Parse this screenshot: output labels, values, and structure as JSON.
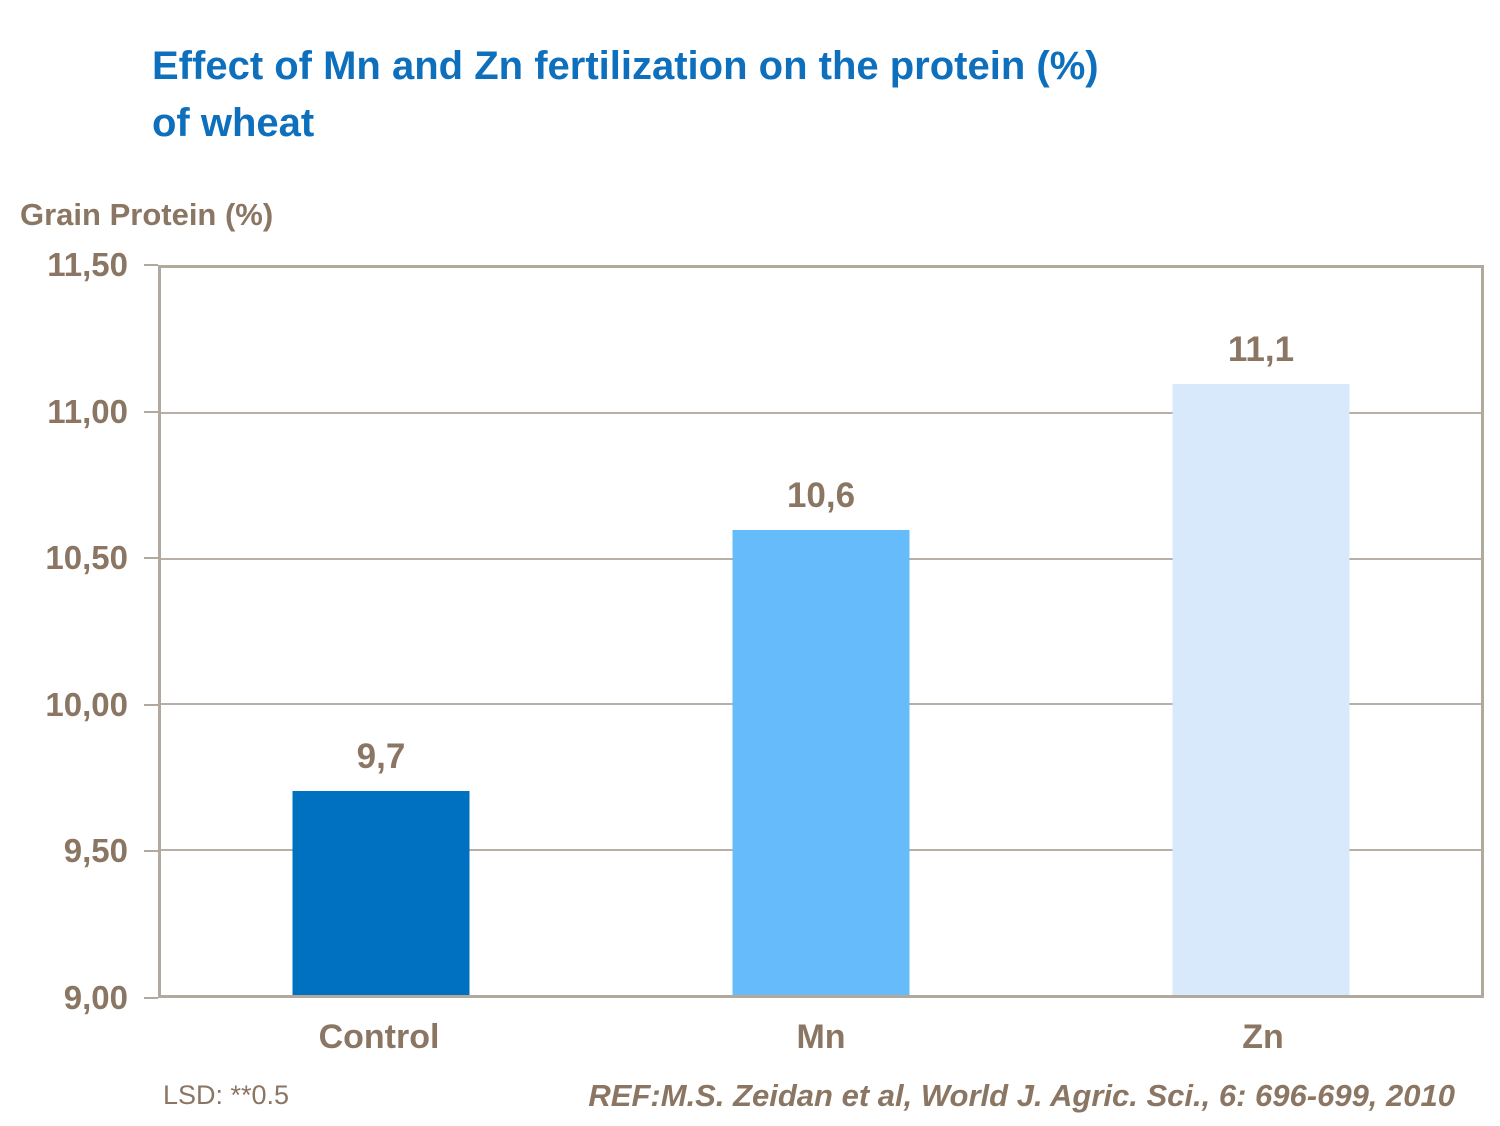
{
  "title": "Effect of Mn and Zn fertilization on the protein (%)\nof wheat",
  "chart_data": {
    "type": "bar",
    "title": "Effect of Mn and Zn fertilization on the protein (%) of wheat",
    "categories": [
      "Control",
      "Mn",
      "Zn"
    ],
    "values": [
      9.7,
      10.6,
      11.1
    ],
    "value_labels": [
      "9,7",
      "10,6",
      "11,1"
    ],
    "bar_colors": [
      "#0070C0",
      "#66BBFA",
      "#D7E9FB"
    ],
    "xlabel": "",
    "ylabel": "Grain Protein (%)",
    "ylim": [
      9.0,
      11.5
    ],
    "ytick_step": 0.5,
    "ytick_labels": [
      "11,50",
      "11,00",
      "10,50",
      "10,00",
      "9,50",
      "9,00"
    ],
    "grid": true,
    "legend": false
  },
  "footer": {
    "lsd": "LSD: **0.5",
    "ref": "REF:M.S. Zeidan et al, World J. Agric. Sci., 6: 696-699, 2010"
  },
  "colors": {
    "title_blue": "#0E70BD",
    "axis_text_brown": "#8A7663",
    "border_tan": "#B1A89E",
    "background": "#FFFFFF"
  }
}
